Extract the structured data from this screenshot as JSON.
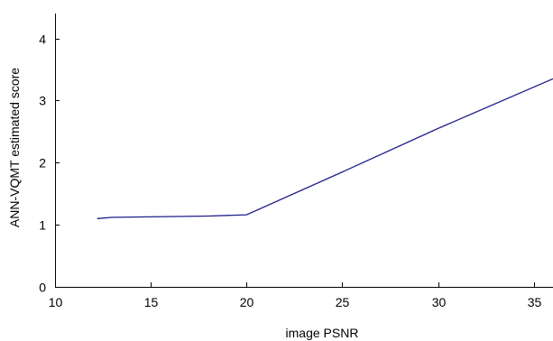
{
  "chart_data": {
    "type": "line",
    "title": "",
    "xlabel": "image PSNR",
    "ylabel": "ANN-VQMT estimated score",
    "xlim": [
      10,
      36
    ],
    "ylim": [
      0,
      4.4
    ],
    "xticks": [
      10,
      15,
      20,
      25,
      30,
      35
    ],
    "yticks": [
      0,
      1,
      2,
      3,
      4
    ],
    "grid": false,
    "legend": "none",
    "series": [
      {
        "color": "#1f1f8a",
        "x": [
          12.2,
          13,
          18,
          20,
          25,
          30,
          36
        ],
        "y": [
          1.1,
          1.12,
          1.14,
          1.16,
          1.85,
          2.55,
          3.35
        ]
      }
    ]
  }
}
